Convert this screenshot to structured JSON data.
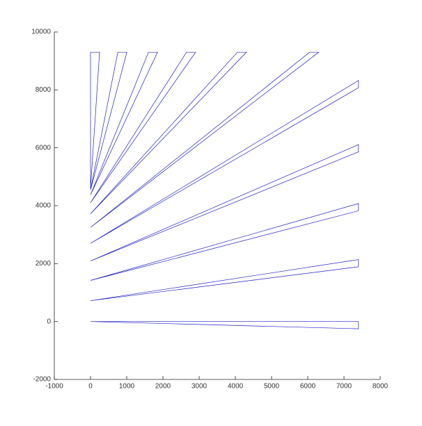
{
  "chart_data": {
    "type": "line",
    "xlim": [
      -1000,
      8000
    ],
    "ylim": [
      -2000,
      10000
    ],
    "xticks": [
      -1000,
      0,
      1000,
      2000,
      3000,
      4000,
      5000,
      6000,
      7000,
      8000
    ],
    "yticks": [
      -2000,
      0,
      2000,
      4000,
      6000,
      8000,
      10000
    ],
    "series": [
      {
        "color": "#1f1fc8",
        "x": [
          0,
          7400,
          7400,
          0,
          null,
          0,
          7400,
          7400,
          0,
          null,
          0,
          7400,
          7400,
          0,
          null,
          0,
          7400,
          7400,
          0,
          null,
          0,
          7400,
          7400,
          0,
          null,
          0,
          6050,
          6300,
          0,
          null,
          0,
          4055,
          4305,
          0,
          null,
          0,
          2650,
          2900,
          0,
          null,
          0,
          1600,
          1850,
          0,
          null,
          0,
          753,
          1003,
          0,
          null,
          0,
          0,
          250,
          0
        ],
        "values": [
          0,
          0,
          -250,
          0,
          null,
          720,
          1890,
          2140,
          720,
          null,
          1420,
          3825,
          4075,
          1420,
          null,
          2090,
          5860,
          6110,
          2090,
          null,
          2700,
          8076,
          8326,
          2700,
          null,
          3250,
          9300,
          9300,
          3250,
          null,
          3720,
          9300,
          9300,
          3720,
          null,
          4100,
          9300,
          9300,
          4100,
          null,
          4375,
          9300,
          9300,
          4375,
          null,
          4545,
          9300,
          9300,
          4545,
          null,
          4600,
          9300,
          9300,
          4600
        ]
      }
    ]
  }
}
